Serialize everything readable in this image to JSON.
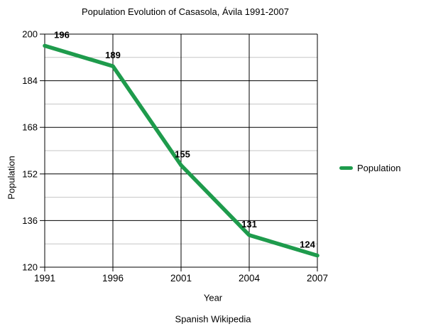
{
  "chart_data": {
    "type": "line",
    "title": "Population Evolution of Casasola, Ávila 1991-2007",
    "categories": [
      "1991",
      "1996",
      "2001",
      "2004",
      "2007"
    ],
    "series": [
      {
        "name": "Population",
        "values": [
          196,
          189,
          155,
          131,
          124
        ]
      }
    ],
    "xlabel": "Year",
    "ylabel": "Population",
    "ylim": [
      120,
      200
    ],
    "y_ticks": [
      200,
      184,
      168,
      152,
      136,
      120
    ],
    "y_minor_ticks": [
      192,
      176,
      160,
      144,
      128
    ],
    "grid": "major-black-minor-gray",
    "legend_position": "right",
    "data_labels_shown": true,
    "colors": {
      "line": "#1e9b4c",
      "major_grid": "#000000",
      "minor_grid": "#c6c6c6",
      "text": "#000000",
      "background": "#ffffff"
    }
  },
  "legend": {
    "items": [
      {
        "label": "Population",
        "color": "#1e9b4c"
      }
    ]
  },
  "footer": {
    "credit": "Spanish Wikipedia"
  }
}
